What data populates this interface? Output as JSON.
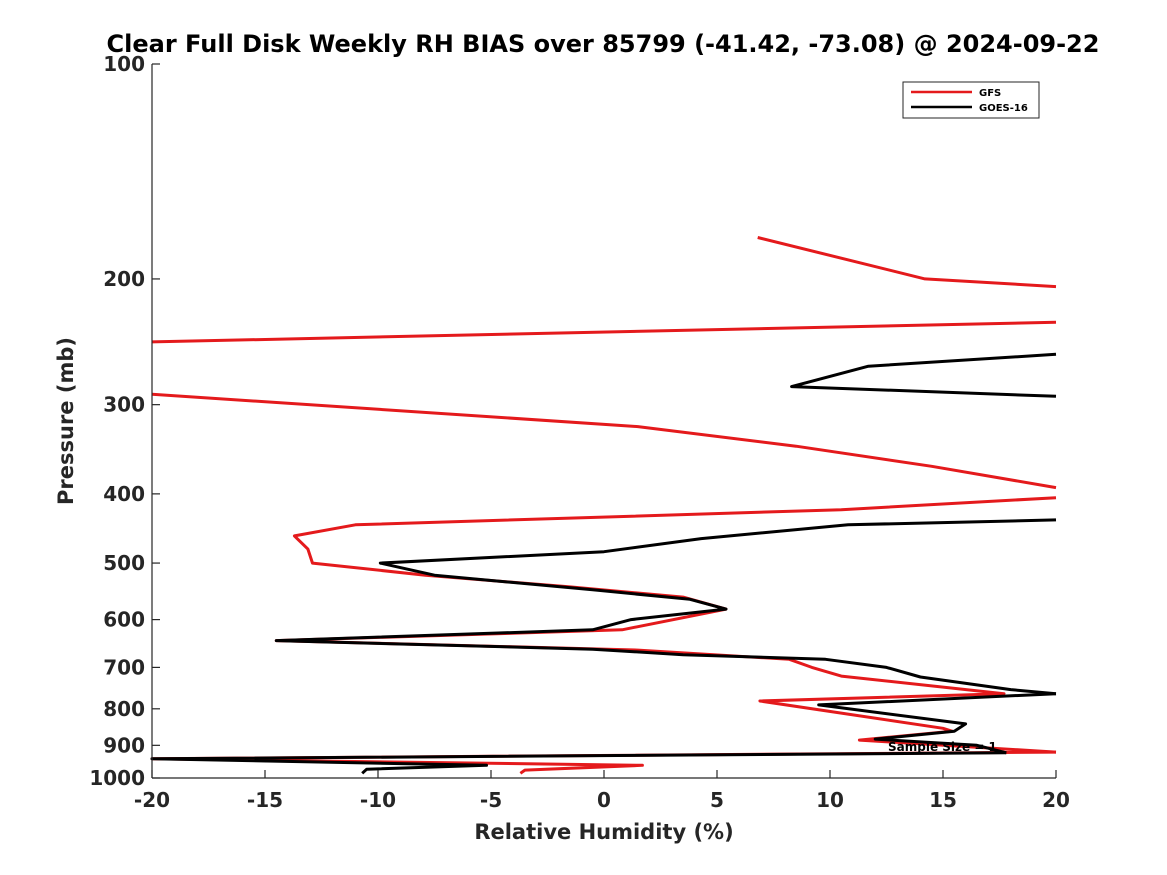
{
  "chart_data": {
    "type": "line",
    "title": "Clear Full Disk Weekly RH BIAS over 85799 (-41.42, -73.08) @ 2024-09-22",
    "xlabel": "Relative Humidity (%)",
    "ylabel": "Pressure (mb)",
    "xlim": [
      -20,
      20
    ],
    "ylim": [
      100,
      1000
    ],
    "y_scale": "log",
    "y_reversed": true,
    "grid": false,
    "legend_position": "top-right",
    "x_ticks": [
      -20,
      -15,
      -10,
      -5,
      0,
      5,
      10,
      15,
      20
    ],
    "y_ticks": [
      100,
      200,
      300,
      400,
      500,
      600,
      700,
      800,
      900,
      1000
    ],
    "annotation": "Sample Size = 1",
    "series": [
      {
        "name": "GFS",
        "color": "#e41a1c",
        "segments": [
          [
            [
              6.8,
              175
            ],
            [
              14.2,
              200
            ],
            [
              20,
              205
            ]
          ],
          [
            [
              20,
              230
            ],
            [
              -20,
              245
            ]
          ],
          [
            [
              -20,
              290
            ],
            [
              1.5,
              322
            ],
            [
              8.5,
              343
            ],
            [
              14.5,
              366
            ],
            [
              20,
              392
            ]
          ],
          [
            [
              20,
              405
            ],
            [
              10.5,
              421
            ],
            [
              -11.0,
              442
            ],
            [
              -13.7,
              458
            ],
            [
              -13.1,
              478
            ],
            [
              -12.9,
              500
            ],
            [
              -7.9,
              520
            ],
            [
              -1.5,
              540
            ],
            [
              3.5,
              558
            ],
            [
              5.4,
              580
            ],
            [
              0.8,
              620
            ],
            [
              -14.5,
              642
            ],
            [
              1.5,
              662
            ],
            [
              8.2,
              682
            ],
            [
              9.2,
              700
            ],
            [
              10.5,
              720
            ],
            [
              17.7,
              762
            ],
            [
              6.9,
              780
            ],
            [
              15.0,
              852
            ],
            [
              15.4,
              860
            ],
            [
              11.3,
              885
            ],
            [
              20,
              920
            ]
          ],
          [
            [
              20,
              920
            ],
            [
              -20,
              940
            ],
            [
              1.7,
              960
            ],
            [
              -3.5,
              975
            ],
            [
              -3.7,
              985
            ]
          ]
        ]
      },
      {
        "name": "GOES-16",
        "color": "#000000",
        "segments": [
          [
            [
              20,
              255
            ],
            [
              11.7,
              265
            ],
            [
              8.3,
              283
            ],
            [
              20,
              292
            ]
          ],
          [
            [
              20,
              435
            ],
            [
              10.8,
              442
            ],
            [
              4.3,
              462
            ],
            [
              0,
              482
            ],
            [
              -9.9,
              500
            ],
            [
              -7.5,
              520
            ],
            [
              -0.5,
              545
            ],
            [
              3.8,
              562
            ],
            [
              5.4,
              580
            ],
            [
              1.2,
              600
            ],
            [
              -0.5,
              620
            ],
            [
              -14.5,
              642
            ],
            [
              -0.5,
              660
            ],
            [
              3.5,
              672
            ],
            [
              9.8,
              682
            ],
            [
              12.5,
              700
            ],
            [
              14.0,
              722
            ],
            [
              18.0,
              752
            ],
            [
              20,
              762
            ]
          ],
          [
            [
              20,
              762
            ],
            [
              9.5,
              790
            ],
            [
              16.0,
              840
            ],
            [
              15.5,
              860
            ],
            [
              12.0,
              882
            ],
            [
              16.5,
              900
            ],
            [
              17.8,
              922
            ]
          ],
          [
            [
              17.8,
              922
            ],
            [
              -20,
              940
            ],
            [
              -5.2,
              960
            ],
            [
              -10.5,
              972
            ],
            [
              -10.7,
              985
            ]
          ]
        ]
      }
    ]
  }
}
